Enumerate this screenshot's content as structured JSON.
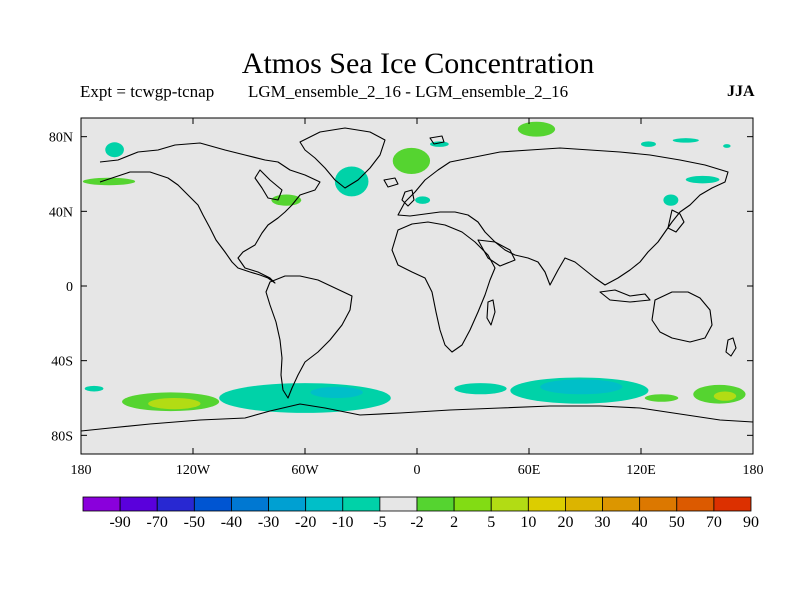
{
  "header": {
    "title": "Atmos Sea Ice Concentration",
    "expt": "Expt = tcwgp-tcnap",
    "run": "LGM_ensemble_2_16 - LGM_ensemble_2_16",
    "season": "JJA"
  },
  "map": {
    "lon_range": [
      -180,
      180
    ],
    "lat_range": [
      -90,
      90
    ],
    "background_color": "#e6e6e6",
    "x_ticks": [
      {
        "lon": -180,
        "label": "180"
      },
      {
        "lon": -120,
        "label": "120W"
      },
      {
        "lon": -60,
        "label": "60W"
      },
      {
        "lon": 0,
        "label": "0"
      },
      {
        "lon": 60,
        "label": "60E"
      },
      {
        "lon": 120,
        "label": "120E"
      },
      {
        "lon": 180,
        "label": "180"
      }
    ],
    "y_ticks": [
      {
        "lat": 80,
        "label": "80N"
      },
      {
        "lat": 40,
        "label": "40N"
      },
      {
        "lat": 0,
        "label": "0"
      },
      {
        "lat": -40,
        "label": "40S"
      },
      {
        "lat": -80,
        "label": "80S"
      }
    ],
    "anomaly_patches": [
      {
        "lon": 64,
        "lat": 84,
        "rlon": 10,
        "rlat": 4,
        "color": "#55d430"
      },
      {
        "lon": 12,
        "lat": 76,
        "rlon": 5,
        "rlat": 1.5,
        "color": "#00d2a8"
      },
      {
        "lon": 124,
        "lat": 76,
        "rlon": 4,
        "rlat": 1.5,
        "color": "#00d2a8"
      },
      {
        "lon": 144,
        "lat": 78,
        "rlon": 7,
        "rlat": 1.2,
        "color": "#00d2a8"
      },
      {
        "lon": 166,
        "lat": 75,
        "rlon": 2,
        "rlat": 1,
        "color": "#00d2a8"
      },
      {
        "lon": -162,
        "lat": 73,
        "rlon": 5,
        "rlat": 4,
        "color": "#00d2a8"
      },
      {
        "lon": -3,
        "lat": 67,
        "rlon": 10,
        "rlat": 7,
        "color": "#55d430"
      },
      {
        "lon": -35,
        "lat": 56,
        "rlon": 9,
        "rlat": 8,
        "color": "#00d2a8"
      },
      {
        "lon": -165,
        "lat": 56,
        "rlon": 14,
        "rlat": 2,
        "color": "#55d430"
      },
      {
        "lon": -70,
        "lat": 46,
        "rlon": 8,
        "rlat": 3,
        "color": "#55d430"
      },
      {
        "lon": 3,
        "lat": 46,
        "rlon": 4,
        "rlat": 2,
        "color": "#00d2a8"
      },
      {
        "lon": 153,
        "lat": 57,
        "rlon": 9,
        "rlat": 2,
        "color": "#00d2a8"
      },
      {
        "lon": 136,
        "lat": 46,
        "rlon": 4,
        "rlat": 3,
        "color": "#00d2a8"
      },
      {
        "lon": -173,
        "lat": -55,
        "rlon": 5,
        "rlat": 1.5,
        "color": "#00d2a8"
      },
      {
        "lon": -132,
        "lat": -62,
        "rlon": 26,
        "rlat": 5,
        "color": "#55d430"
      },
      {
        "lon": -130,
        "lat": -63,
        "rlon": 14,
        "rlat": 3,
        "color": "#b2dc14"
      },
      {
        "lon": -60,
        "lat": -60,
        "rlon": 46,
        "rlat": 8,
        "color": "#00d2a8"
      },
      {
        "lon": -43,
        "lat": -57,
        "rlon": 14,
        "rlat": 3,
        "color": "#00bfc8"
      },
      {
        "lon": 34,
        "lat": -55,
        "rlon": 14,
        "rlat": 3,
        "color": "#00d2a8"
      },
      {
        "lon": 87,
        "lat": -56,
        "rlon": 37,
        "rlat": 7,
        "color": "#00d2a8"
      },
      {
        "lon": 88,
        "lat": -54,
        "rlon": 22,
        "rlat": 4,
        "color": "#00bfc8"
      },
      {
        "lon": 131,
        "lat": -60,
        "rlon": 9,
        "rlat": 2,
        "color": "#55d430"
      },
      {
        "lon": 162,
        "lat": -58,
        "rlon": 14,
        "rlat": 5,
        "color": "#55d430"
      },
      {
        "lon": 165,
        "lat": -59,
        "rlon": 6,
        "rlat": 2.5,
        "color": "#b2dc14"
      }
    ]
  },
  "colorbar": {
    "colors": [
      "#8a00dc",
      "#5a00dc",
      "#2828d2",
      "#0055d2",
      "#0078d2",
      "#00a0d2",
      "#00bfc8",
      "#00d2a8",
      "#e6e6e6",
      "#55d430",
      "#82dc14",
      "#b2dc14",
      "#dccd00",
      "#dcb400",
      "#dc9600",
      "#dc7800",
      "#dc5a00",
      "#dc3000"
    ],
    "labels": [
      "-90",
      "-70",
      "-50",
      "-40",
      "-30",
      "-20",
      "-10",
      "-5",
      "-2",
      "2",
      "5",
      "10",
      "20",
      "30",
      "40",
      "50",
      "70",
      "90"
    ]
  }
}
